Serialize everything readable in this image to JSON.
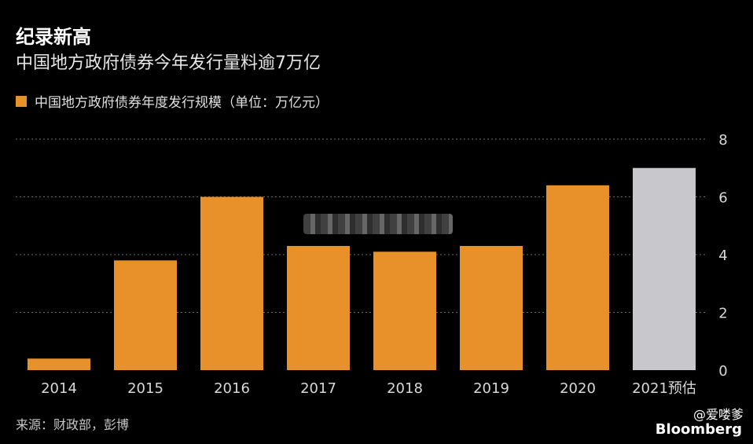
{
  "header": {
    "title": "纪录新高",
    "subtitle": "中国地方政府债券今年发行量料逾7万亿"
  },
  "legend": {
    "label": "中国地方政府债券年度发行规模（单位：万亿元）",
    "color": "#e8912a"
  },
  "footer": {
    "source": "来源：财政部，彭博",
    "watermark_top": "@爱喽爹",
    "watermark_bottom": "Bloomberg"
  },
  "colors": {
    "bar": "#e8912a",
    "forecast_bar": "#c8c8cc",
    "background": "#000000",
    "grid": "#6e6e6e"
  },
  "chart_data": {
    "type": "bar",
    "title": "纪录新高",
    "subtitle": "中国地方政府债券今年发行量料逾7万亿",
    "categories": [
      "2014",
      "2015",
      "2016",
      "2017",
      "2018",
      "2019",
      "2020",
      "2021预估"
    ],
    "series": [
      {
        "name": "中国地方政府债券年度发行规模（单位：万亿元）",
        "values": [
          0.4,
          3.8,
          6.0,
          4.3,
          4.1,
          4.3,
          6.4,
          7.0
        ]
      }
    ],
    "forecast_index": 7,
    "ylim": [
      0,
      8
    ],
    "yticks": [
      0,
      2,
      4,
      6,
      8
    ],
    "yaxis_position": "right",
    "grid": true,
    "legend_position": "top-left",
    "xlabel": "",
    "ylabel": ""
  }
}
